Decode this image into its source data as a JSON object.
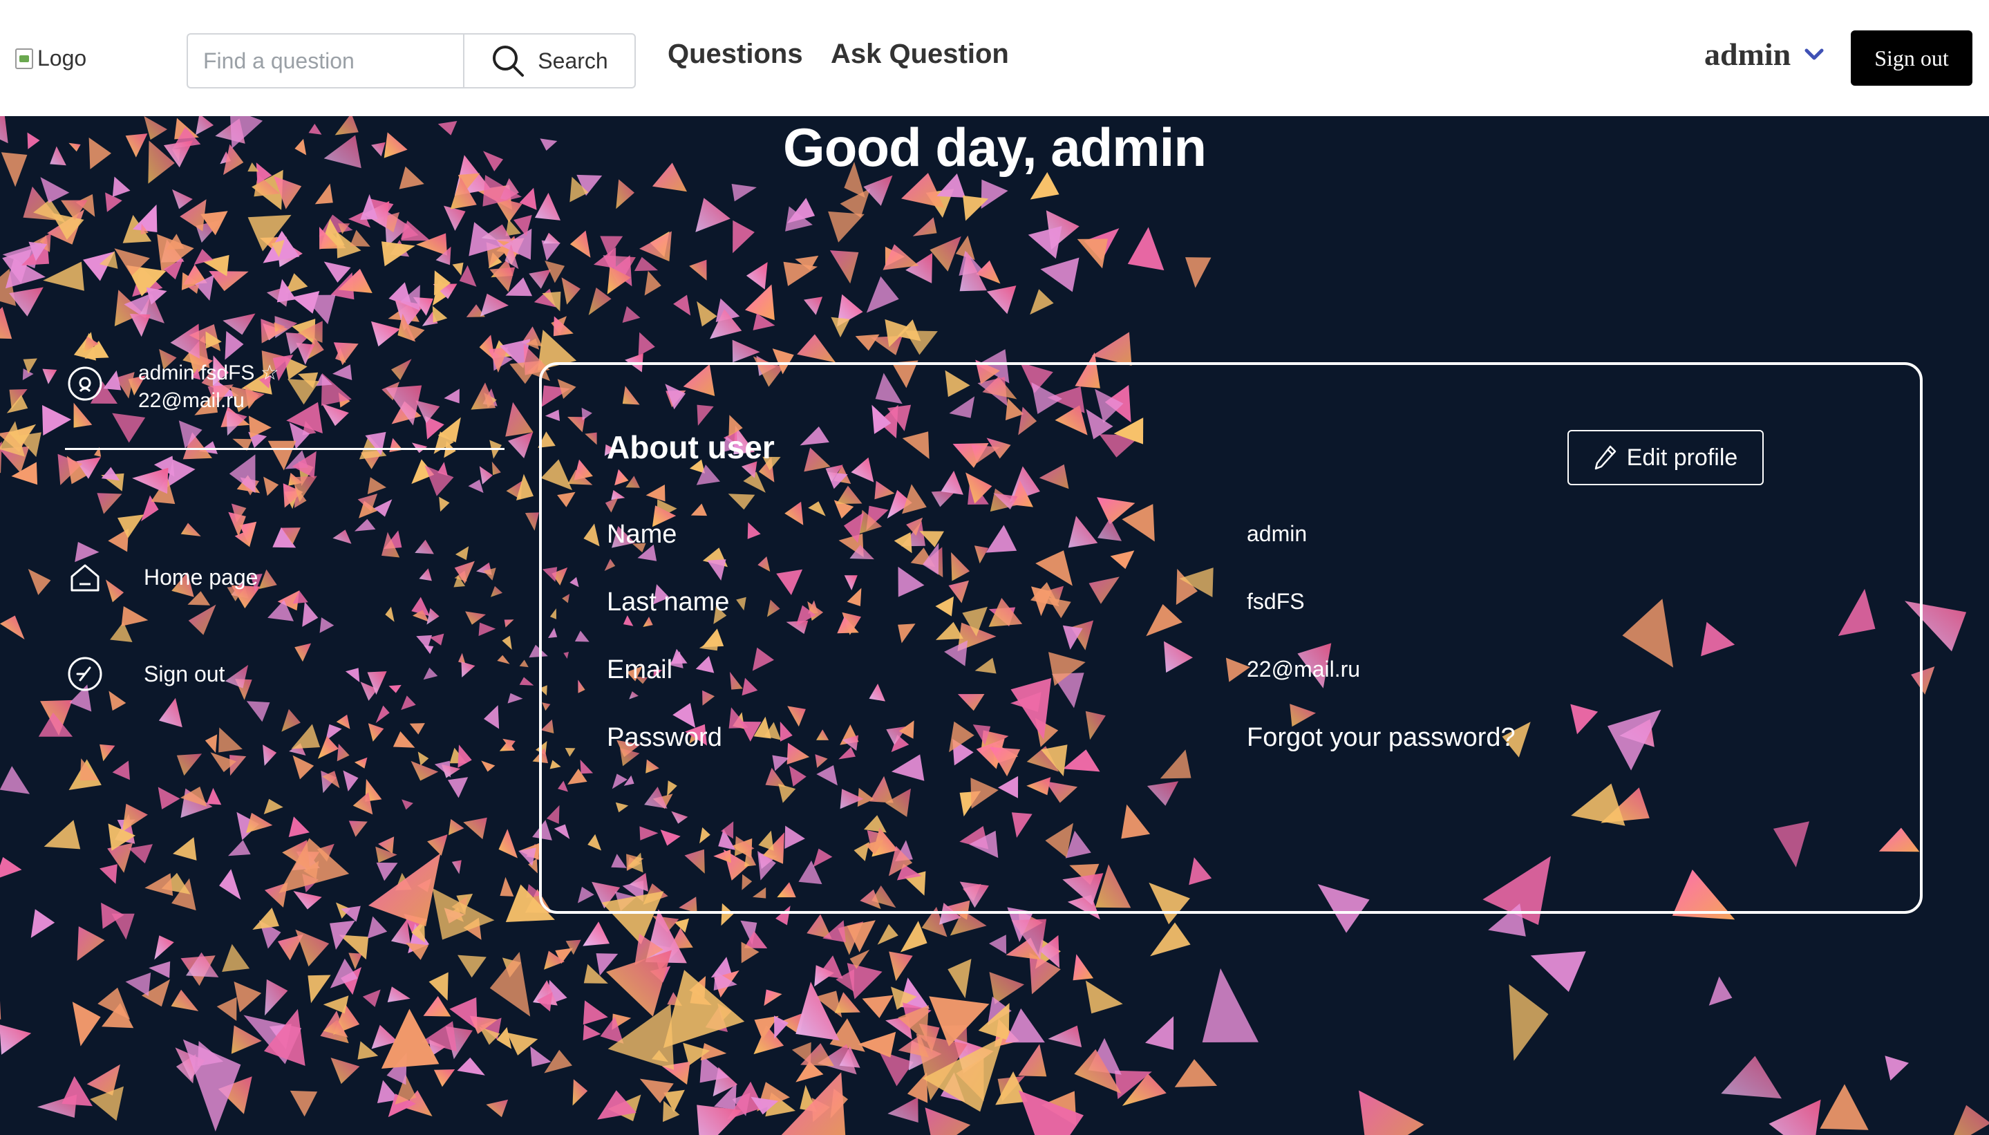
{
  "header": {
    "logo_alt": "Logo",
    "search": {
      "placeholder": "Find a question",
      "button_label": "Search"
    },
    "nav": {
      "questions": "Questions",
      "ask_question": "Ask Question"
    },
    "user_menu": {
      "username": "admin",
      "icon": "chevron-down-icon"
    },
    "signout_label": "Sign out"
  },
  "main": {
    "greeting": "Good day, admin"
  },
  "sidebar": {
    "user_line1": "admin fsdFS ☆",
    "user_line2": "22@mail.ru",
    "items": [
      {
        "label": "Home page",
        "icon": "home-icon"
      },
      {
        "label": "Sign out",
        "icon": "logout-icon"
      }
    ]
  },
  "card": {
    "title": "About user",
    "edit_label": "Edit profile",
    "fields": [
      {
        "label": "Name",
        "value": "admin"
      },
      {
        "label": "Last name",
        "value": "fsdFS"
      },
      {
        "label": "Email",
        "value": "22@mail.ru"
      },
      {
        "label": "Password",
        "value": ""
      }
    ],
    "forgot_password": "Forgot your password?"
  },
  "colors": {
    "background": "#0b172a",
    "header": "#ffffff",
    "confetti_pink": "#e95a9b",
    "confetti_orange": "#f5a25d",
    "chevron": "#3f51b5"
  }
}
